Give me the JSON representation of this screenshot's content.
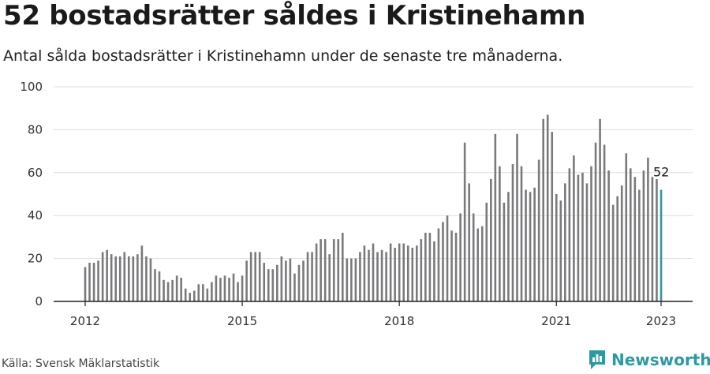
{
  "header": {
    "title": "52 bostadsrätter såldes i Kristinehamn",
    "subtitle": "Antal sålda bostadsrätter i Kristinehamn under de senaste tre månaderna."
  },
  "footer": {
    "source": "Källa: Svensk Mäklarstatistik",
    "brand": "Newsworthy"
  },
  "colors": {
    "bar": "#7a7a7c",
    "highlight": "#2a9aa6",
    "grid": "#dddddd",
    "axis": "#222222",
    "brand": "#2a9aa6"
  },
  "chart_data": {
    "type": "bar",
    "title": "52 bostadsrätter såldes i Kristinehamn",
    "xlabel": "",
    "ylabel": "",
    "ylim": [
      0,
      100
    ],
    "yticks": [
      0,
      20,
      40,
      60,
      80,
      100
    ],
    "xticks": [
      "2012",
      "2015",
      "2018",
      "2021",
      "2023"
    ],
    "grid": true,
    "start": "2012-01",
    "end": "2023-01",
    "highlight_last": true,
    "last_label": "52",
    "values": [
      16,
      18,
      18,
      19,
      23,
      24,
      22,
      21,
      21,
      23,
      21,
      21,
      22,
      26,
      21,
      20,
      15,
      14,
      10,
      9,
      10,
      12,
      11,
      6,
      4,
      5,
      8,
      8,
      6,
      9,
      12,
      11,
      12,
      11,
      13,
      9,
      12,
      19,
      23,
      23,
      23,
      18,
      15,
      15,
      17,
      21,
      19,
      20,
      13,
      17,
      19,
      23,
      23,
      27,
      29,
      29,
      22,
      29,
      29,
      32,
      20,
      20,
      20,
      23,
      26,
      24,
      27,
      23,
      24,
      23,
      27,
      25,
      27,
      27,
      26,
      25,
      26,
      29,
      32,
      32,
      28,
      34,
      37,
      40,
      33,
      32,
      41,
      74,
      55,
      41,
      34,
      35,
      46,
      57,
      78,
      63,
      46,
      51,
      64,
      78,
      63,
      52,
      51,
      53,
      66,
      85,
      87,
      79,
      50,
      47,
      55,
      62,
      68,
      59,
      60,
      55,
      63,
      74,
      85,
      73,
      61,
      45,
      49,
      54,
      69,
      62,
      58,
      52,
      61,
      67,
      58,
      57,
      52
    ]
  }
}
